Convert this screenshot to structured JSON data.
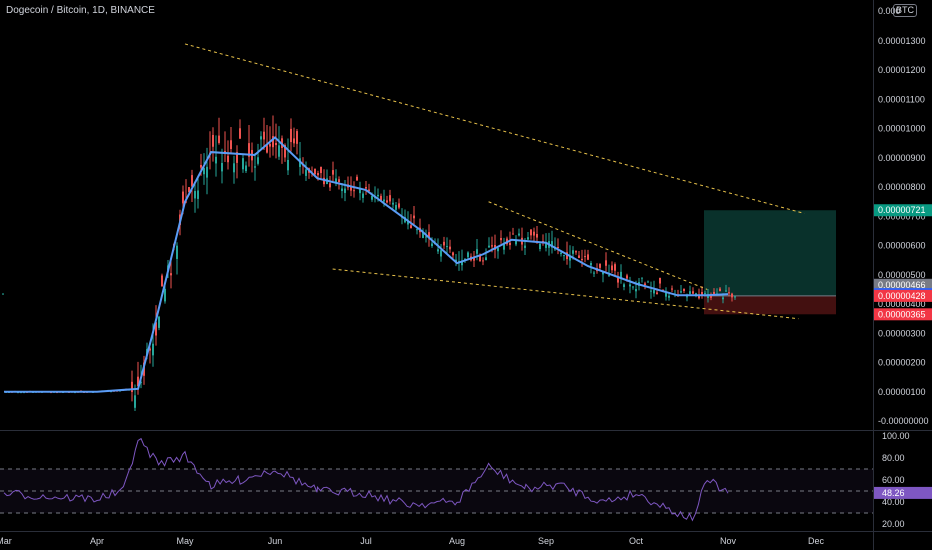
{
  "header": {
    "title": "Dogecoin / Bitcoin, 1D, BINANCE",
    "currency_badge": "BTC"
  },
  "colors": {
    "background": "#000000",
    "ema": "#5b9cf6",
    "trendline": "#e8c24a",
    "rsi_line": "#7e57c2",
    "up_candle": "#26a69a",
    "down_candle": "#ef5350",
    "target_zone": "#0b3a33",
    "stop_zone": "#4a1212"
  },
  "price_axis": {
    "labels": [
      "0.00001300",
      "0.00001200",
      "0.00001100",
      "0.00001000",
      "0.00000900",
      "0.00000800",
      "0.00000700",
      "0.00000600",
      "0.00000500",
      "0.00000400",
      "0.00000300",
      "0.00000200",
      "0.00000100",
      "-0.00000000"
    ],
    "top_partial": "0.000"
  },
  "price_badges": [
    {
      "label": "0.00000721",
      "value": 7.21e-06,
      "color": "#089981"
    },
    {
      "label": "0.00000466",
      "value": 4.66e-06,
      "color": "#787b86"
    },
    {
      "label": "0.00000434",
      "value": 4.34e-06,
      "color": "#2962ff"
    },
    {
      "label": "0.00000428",
      "value": 4.28e-06,
      "color": "#f23645"
    },
    {
      "label": "0.00000365",
      "value": 3.65e-06,
      "color": "#f23645"
    }
  ],
  "rsi_axis": {
    "labels": [
      "100.00",
      "80.00",
      "60.00",
      "40.00",
      "20.00"
    ],
    "current_label": "48.26",
    "current_value": 48.26
  },
  "time_axis": {
    "labels": [
      "Mar",
      "Apr",
      "May",
      "Jun",
      "Jul",
      "Aug",
      "Sep",
      "Oct",
      "Nov",
      "Dec"
    ]
  },
  "chart_data": {
    "type": "candlestick",
    "pair": "Dogecoin / Bitcoin",
    "interval": "1D",
    "exchange": "BINANCE",
    "price_unit": "BTC",
    "ylim": [
      -1e-07,
      1.4e-06
    ],
    "ema_series_approx": [
      {
        "x": "Mar 1",
        "y": 1e-06
      },
      {
        "x": "Apr 1",
        "y": 1e-06
      },
      {
        "x": "Apr 15",
        "y": 1.1e-06
      },
      {
        "x": "Apr 20",
        "y": 3e-06
      },
      {
        "x": "May 1",
        "y": 7.5e-06
      },
      {
        "x": "May 10",
        "y": 9.2e-06
      },
      {
        "x": "May 25",
        "y": 9.1e-06
      },
      {
        "x": "Jun 1",
        "y": 9.7e-06
      },
      {
        "x": "Jun 15",
        "y": 8.3e-06
      },
      {
        "x": "Jul 1",
        "y": 7.9e-06
      },
      {
        "x": "Jul 20",
        "y": 6.5e-06
      },
      {
        "x": "Aug 1",
        "y": 5.4e-06
      },
      {
        "x": "Aug 10",
        "y": 5.7e-06
      },
      {
        "x": "Aug 20",
        "y": 6.2e-06
      },
      {
        "x": "Sep 1",
        "y": 6.1e-06
      },
      {
        "x": "Sep 15",
        "y": 5.3e-06
      },
      {
        "x": "Oct 1",
        "y": 4.7e-06
      },
      {
        "x": "Oct 15",
        "y": 4.3e-06
      },
      {
        "x": "Oct 25",
        "y": 4.3e-06
      },
      {
        "x": "Nov 1",
        "y": 4.34e-06
      }
    ],
    "trendlines": [
      {
        "name": "upper wedge",
        "from": {
          "x": "May 1",
          "y": 1.29e-05
        },
        "to": {
          "x": "Nov 27",
          "y": 7.1e-06
        }
      },
      {
        "name": "lower wedge",
        "from": {
          "x": "Jun 20",
          "y": 5.2e-06
        },
        "to": {
          "x": "Nov 25",
          "y": 3.5e-06
        }
      },
      {
        "name": "inner channel",
        "from": {
          "x": "Aug 12",
          "y": 7.5e-06
        },
        "to": {
          "x": "Oct 25",
          "y": 4.5e-06
        }
      }
    ],
    "position": {
      "target": 7.21e-06,
      "entry": 4.28e-06,
      "stop": 3.65e-06
    },
    "rsi": {
      "current": 48.26,
      "levels": [
        70,
        50,
        30
      ],
      "series_approx": [
        {
          "x": "Mar 1",
          "y": 48
        },
        {
          "x": "Mar 15",
          "y": 45
        },
        {
          "x": "Apr 1",
          "y": 43
        },
        {
          "x": "Apr 10",
          "y": 50
        },
        {
          "x": "Apr 15",
          "y": 97
        },
        {
          "x": "Apr 22",
          "y": 75
        },
        {
          "x": "May 1",
          "y": 82
        },
        {
          "x": "May 10",
          "y": 55
        },
        {
          "x": "May 20",
          "y": 60
        },
        {
          "x": "Jun 1",
          "y": 70
        },
        {
          "x": "Jun 15",
          "y": 50
        },
        {
          "x": "Jul 1",
          "y": 48
        },
        {
          "x": "Jul 15",
          "y": 38
        },
        {
          "x": "Aug 1",
          "y": 40
        },
        {
          "x": "Aug 12",
          "y": 72
        },
        {
          "x": "Aug 25",
          "y": 52
        },
        {
          "x": "Sep 5",
          "y": 56
        },
        {
          "x": "Sep 20",
          "y": 40
        },
        {
          "x": "Oct 1",
          "y": 48
        },
        {
          "x": "Oct 15",
          "y": 30
        },
        {
          "x": "Oct 20",
          "y": 25
        },
        {
          "x": "Oct 25",
          "y": 60
        },
        {
          "x": "Nov 1",
          "y": 48
        }
      ]
    }
  }
}
